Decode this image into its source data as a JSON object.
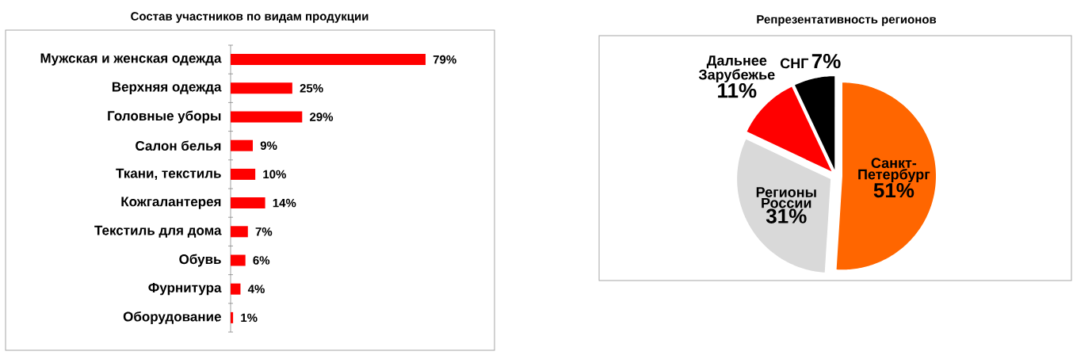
{
  "chart_data": [
    {
      "type": "bar",
      "orientation": "horizontal",
      "title": "Состав участников по видам продукции",
      "categories": [
        "Мужская и женская одежда",
        "Верхняя одежда",
        "Головные уборы",
        "Салон белья",
        "Ткани, текстиль",
        "Кожгалантерея",
        "Текстиль для дома",
        "Обувь",
        "Фурнитура",
        "Оборудование"
      ],
      "values": [
        79,
        25,
        29,
        9,
        10,
        14,
        7,
        6,
        4,
        1
      ],
      "color": "#ff0000",
      "value_labels": [
        "79%",
        "25%",
        "29%",
        "9%",
        "10%",
        "14%",
        "7%",
        "6%",
        "4%",
        "1%"
      ]
    },
    {
      "type": "pie",
      "title": "Репрезентативность регионов",
      "categories": [
        "Санкт-Петербург",
        "Регионы России",
        "Дальнее Зарубежье",
        "СНГ"
      ],
      "values": [
        51,
        31,
        11,
        7
      ],
      "colors": [
        "#ff6600",
        "#d9d9d9",
        "#ff0000",
        "#000000"
      ],
      "value_labels": [
        "51%",
        "31%",
        "11%",
        "7%"
      ]
    }
  ]
}
